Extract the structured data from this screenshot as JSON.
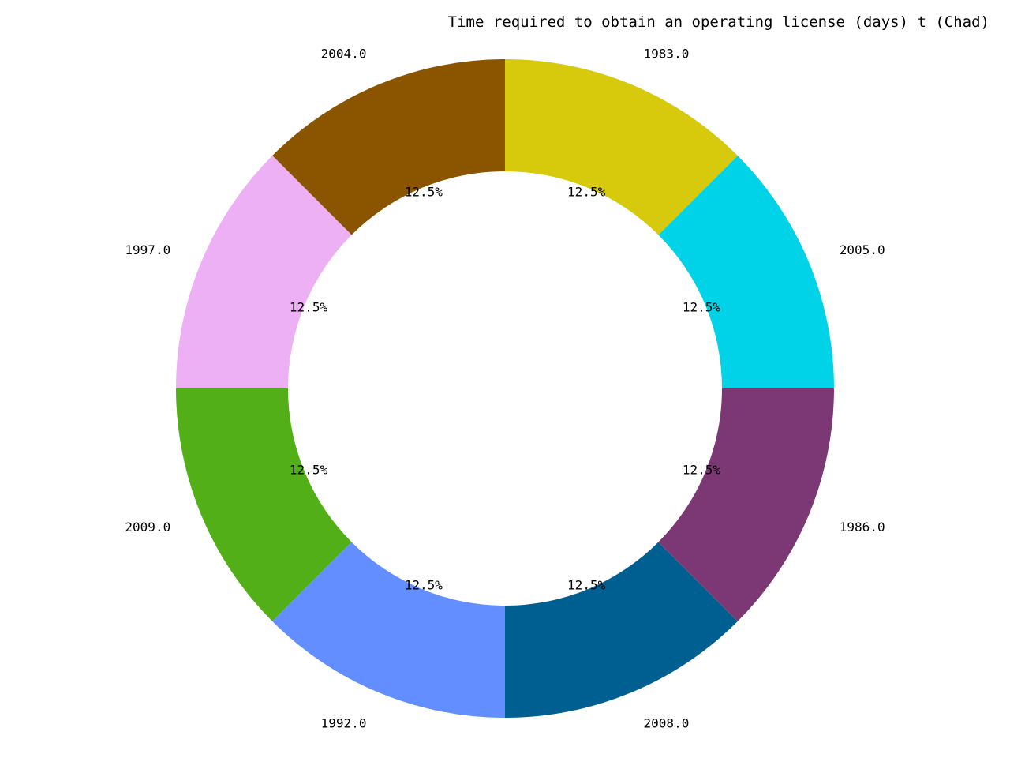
{
  "chart_data": {
    "type": "pie",
    "style": "donut",
    "title": "Time required to obtain an operating license (days) t (Chad)",
    "categories": [
      "2004.0",
      "1997.0",
      "2009.0",
      "1992.0",
      "2008.0",
      "1986.0",
      "2005.0",
      "1983.0"
    ],
    "values": [
      1,
      1,
      1,
      1,
      1,
      1,
      1,
      1
    ],
    "percent_labels": [
      "12.5%",
      "12.5%",
      "12.5%",
      "12.5%",
      "12.5%",
      "12.5%",
      "12.5%",
      "12.5%"
    ],
    "colors": [
      "#8B5500",
      "#EEB0F4",
      "#53AF18",
      "#638EFF",
      "#005F91",
      "#7C3874",
      "#00D2E7",
      "#D7CA0D"
    ],
    "start_angle_deg": 90,
    "direction": "counterclockwise",
    "legend": "none"
  }
}
